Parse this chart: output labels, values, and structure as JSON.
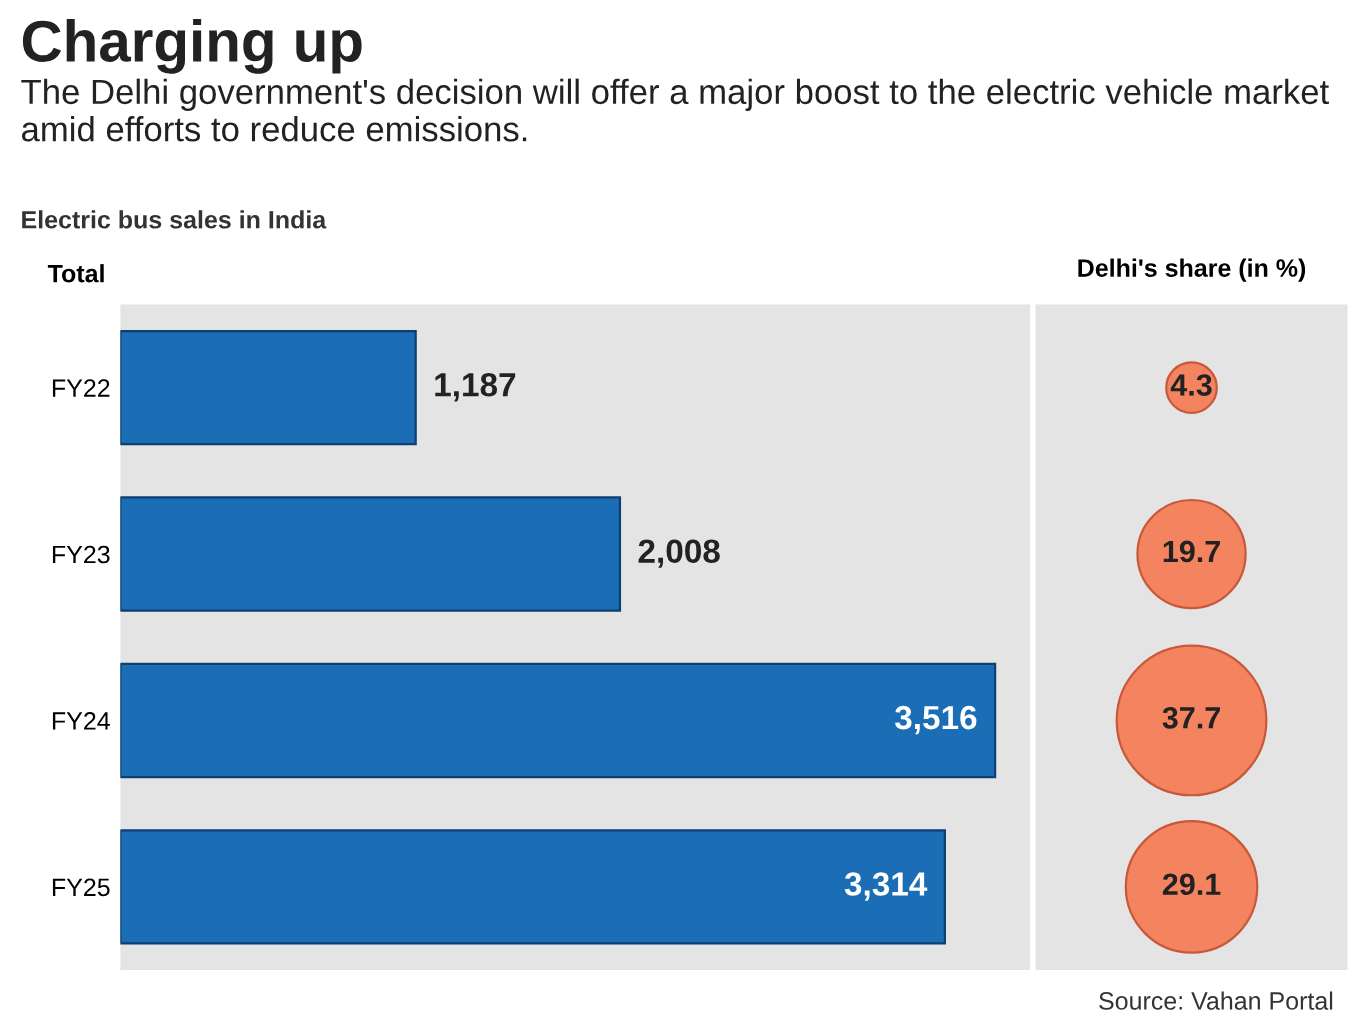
{
  "chart_data": [
    {
      "type": "bar",
      "orientation": "horizontal",
      "title": "Charging up",
      "subtitle": "The Delhi government's decision will offer a major boost to the electric vehicle market amid efforts to reduce emissions.",
      "xlabel": "Total",
      "categories": [
        "FY22",
        "FY23",
        "FY24",
        "FY25"
      ],
      "values": [
        1187,
        2008,
        3516,
        3314
      ],
      "value_labels": [
        "1,187",
        "2,008",
        "3,516",
        "3,314"
      ],
      "color": "#1b6db5",
      "annotations": [
        "Electric bus sales in India",
        "Source: Vahan Portal"
      ]
    },
    {
      "type": "other",
      "title": "Delhi's share (in %)",
      "values": [
        4.3,
        19.7,
        37.7,
        29.1
      ],
      "color": "#f4845f",
      "data_labels": true
    }
  ]
}
